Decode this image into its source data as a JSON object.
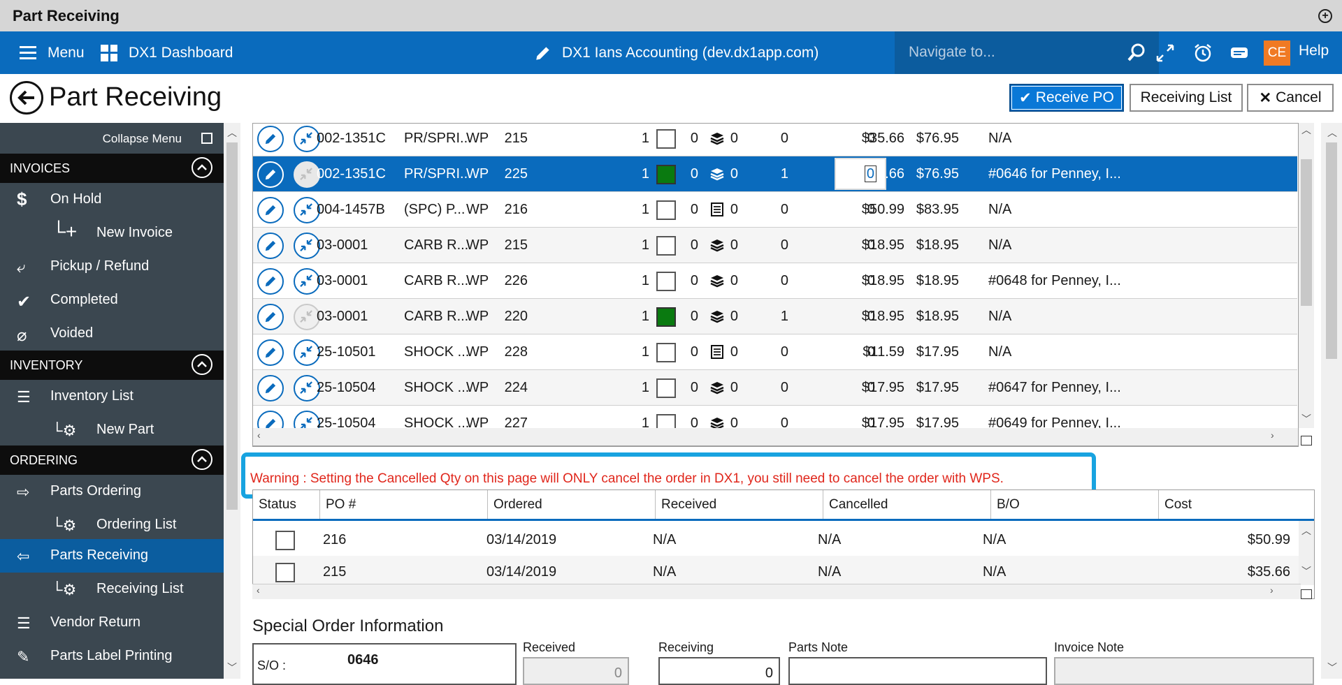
{
  "window": {
    "title": "Part Receiving"
  },
  "appbar": {
    "menu_label": "Menu",
    "dashboard_label": "DX1 Dashboard",
    "company_label": "DX1 Ians Accounting (dev.dx1app.com)",
    "search_placeholder": "Navigate to...",
    "user_initials": "CE",
    "help_label": "Help"
  },
  "page": {
    "title": "Part Receiving",
    "buttons": {
      "receive": "Receive PO",
      "list": "Receiving List",
      "cancel": "Cancel"
    }
  },
  "sidebar": {
    "collapse_label": "Collapse Menu",
    "sections": {
      "invoices": "INVOICES",
      "inventory": "INVENTORY",
      "ordering": "ORDERING"
    },
    "items": {
      "on_hold": "On Hold",
      "new_invoice": "New Invoice",
      "pickup_refund": "Pickup / Refund",
      "completed": "Completed",
      "voided": "Voided",
      "inventory_list": "Inventory List",
      "new_part": "New Part",
      "parts_ordering": "Parts Ordering",
      "ordering_list": "Ordering List",
      "parts_receiving": "Parts Receiving",
      "receiving_list": "Receiving List",
      "vendor_return": "Vendor Return",
      "parts_label_printing": "Parts Label Printing"
    }
  },
  "parts": [
    {
      "part": "002-1351C",
      "desc": "PR/SPRI...",
      "vendor": "WP",
      "po": "215",
      "checked": false,
      "type": "stack",
      "a": "1",
      "b": "0",
      "c": "0",
      "d": "0",
      "e": "0",
      "cost": "$35.66",
      "price": "$76.95",
      "note": "N/A"
    },
    {
      "part": "002-1351C",
      "desc": "PR/SPRI...",
      "vendor": "WP",
      "po": "225",
      "checked": true,
      "type": "stack",
      "a": "1",
      "b": "0",
      "c": "0",
      "d": "1",
      "e": "0",
      "cost": "$35.66",
      "price": "$76.95",
      "note": "#0646 for Penney, I..."
    },
    {
      "part": "004-1457B",
      "desc": "(SPC) P...",
      "vendor": "WP",
      "po": "216",
      "checked": false,
      "type": "doc",
      "a": "1",
      "b": "0",
      "c": "0",
      "d": "0",
      "e": "0",
      "cost": "$50.99",
      "price": "$83.95",
      "note": "N/A"
    },
    {
      "part": "03-0001",
      "desc": "CARB R...",
      "vendor": "WP",
      "po": "215",
      "checked": false,
      "type": "stack",
      "a": "1",
      "b": "0",
      "c": "0",
      "d": "0",
      "e": "0",
      "cost": "$18.95",
      "price": "$18.95",
      "note": "N/A"
    },
    {
      "part": "03-0001",
      "desc": "CARB R...",
      "vendor": "WP",
      "po": "226",
      "checked": false,
      "type": "stack",
      "a": "1",
      "b": "0",
      "c": "0",
      "d": "0",
      "e": "0",
      "cost": "$18.95",
      "price": "$18.95",
      "note": "#0648 for Penney, I..."
    },
    {
      "part": "03-0001",
      "desc": "CARB R...",
      "vendor": "WP",
      "po": "220",
      "checked": true,
      "type": "stack",
      "a": "1",
      "b": "0",
      "c": "0",
      "d": "1",
      "e": "0",
      "cost": "$18.95",
      "price": "$18.95",
      "note": "N/A"
    },
    {
      "part": "25-10501",
      "desc": "SHOCK ...",
      "vendor": "WP",
      "po": "228",
      "checked": false,
      "type": "doc",
      "a": "1",
      "b": "0",
      "c": "0",
      "d": "0",
      "e": "0",
      "cost": "$11.59",
      "price": "$17.95",
      "note": "N/A"
    },
    {
      "part": "25-10504",
      "desc": "SHOCK ...",
      "vendor": "WP",
      "po": "224",
      "checked": false,
      "type": "stack",
      "a": "1",
      "b": "0",
      "c": "0",
      "d": "0",
      "e": "0",
      "cost": "$17.95",
      "price": "$17.95",
      "note": "#0647 for Penney, I..."
    },
    {
      "part": "25-10504",
      "desc": "SHOCK ...",
      "vendor": "WP",
      "po": "227",
      "checked": false,
      "type": "stack",
      "a": "1",
      "b": "0",
      "c": "0",
      "d": "0",
      "e": "0",
      "cost": "$17.95",
      "price": "$17.95",
      "note": "#0649 for Penney, I..."
    }
  ],
  "selected_row": 1,
  "warning": "Warning : Setting the Cancelled Qty on this page will ONLY cancel the order in DX1, you still need to cancel the order with WPS.",
  "po_table": {
    "headers": [
      "Status",
      "PO #",
      "Ordered",
      "Received",
      "Cancelled",
      "B/O",
      "Cost"
    ],
    "rows": [
      {
        "po": "216",
        "ordered": "03/14/2019",
        "received": "N/A",
        "cancelled": "N/A",
        "bo": "N/A",
        "cost": "$50.99"
      },
      {
        "po": "215",
        "ordered": "03/14/2019",
        "received": "N/A",
        "cancelled": "N/A",
        "bo": "N/A",
        "cost": "$35.66"
      }
    ]
  },
  "special_order": {
    "title": "Special Order Information",
    "so_label": "S/O :",
    "so_number": "0646",
    "received_label": "Received",
    "received_value": "0",
    "receiving_label": "Receiving",
    "receiving_value": "0",
    "parts_note_label": "Parts Note",
    "invoice_note_label": "Invoice Note"
  },
  "colors": {
    "brand": "#0a6bbd",
    "warning": "#e0261b",
    "highlight": "#18a3e0",
    "user_badge": "#f07a24"
  }
}
